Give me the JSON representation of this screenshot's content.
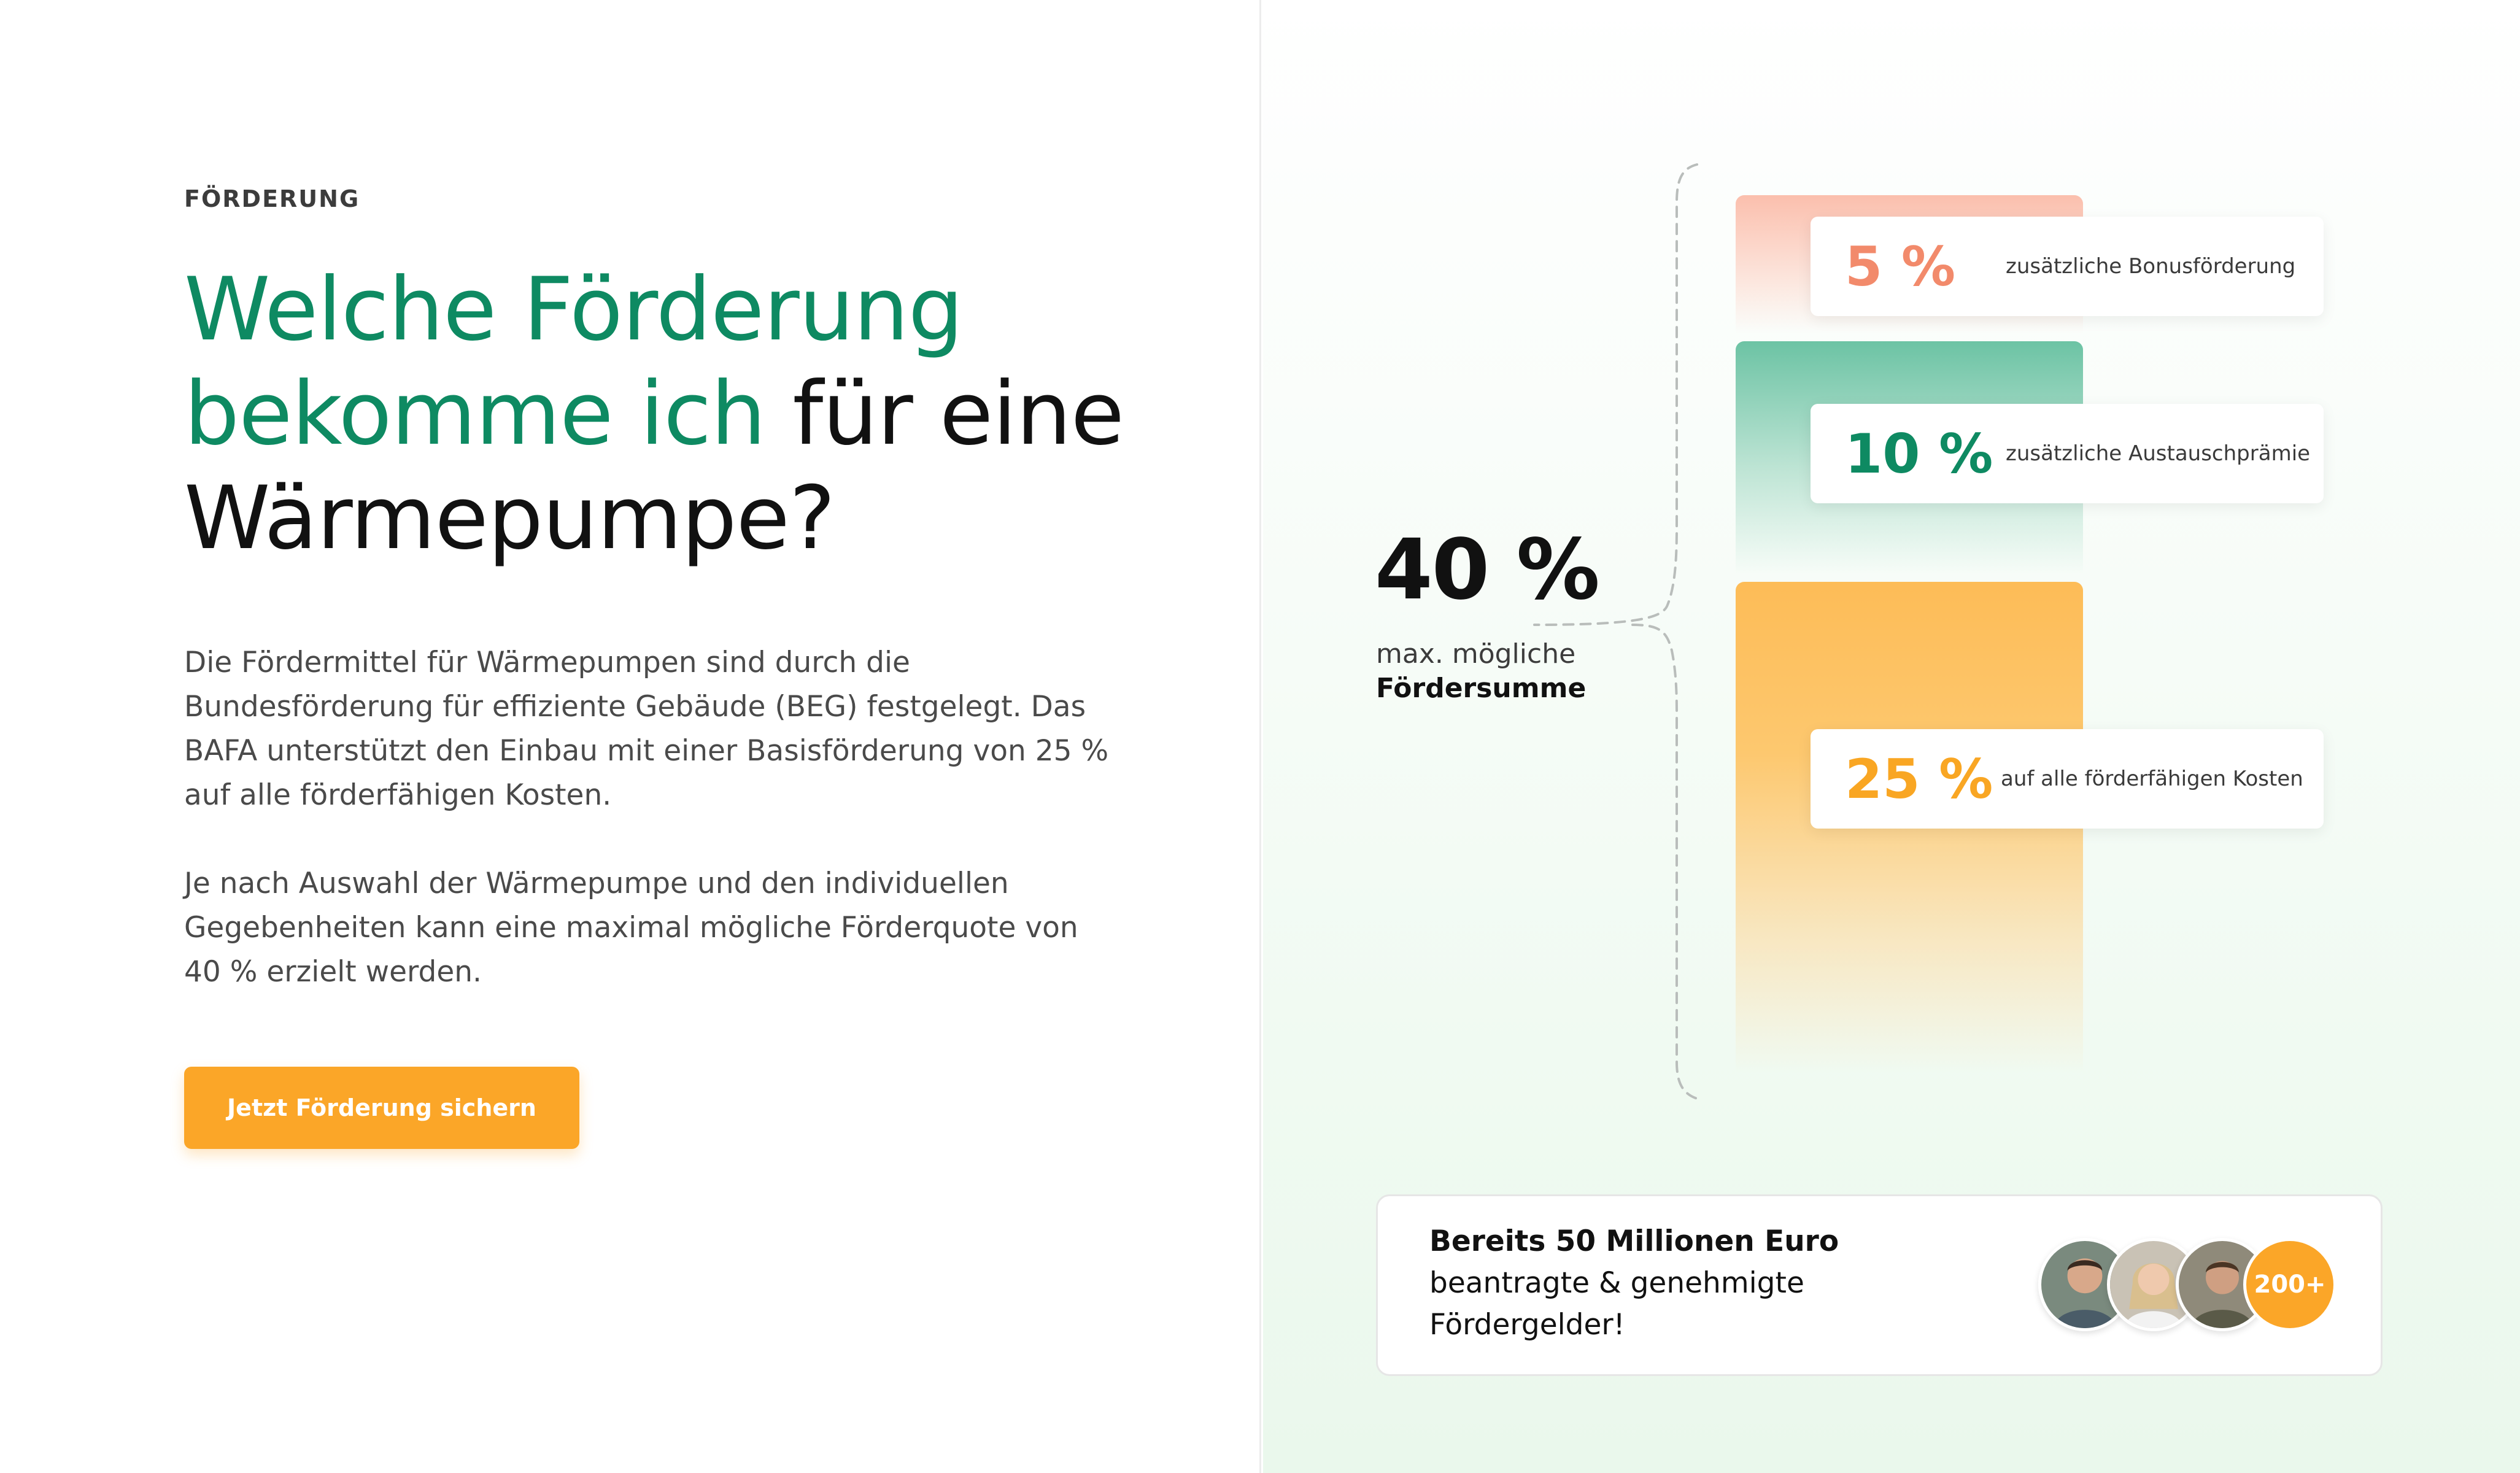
{
  "section": {
    "eyebrow": "FÖRDERUNG",
    "headline_accent_line1": "Welche Förderung",
    "headline_accent_line2": "bekomme ich",
    "headline_dark_line2": " für eine",
    "headline_dark_line3": "Wärmepumpe?",
    "paragraph1": "Die Fördermittel für Wärmepumpen sind durch die Bundesförderung für effiziente Gebäude (BEG) festgelegt. Das BAFA unterstützt den Einbau mit einer Basisförderung von 25 % auf alle förderfähigen Kosten.",
    "paragraph2": "Je nach Auswahl der Wärmepumpe und den individuellen Gegebenheiten kann eine maximal mögliche Förderquote von 40 % erzielt werden.",
    "cta_label": "Jetzt Förderung sichern"
  },
  "funding": {
    "total_value": "40 %",
    "total_label_line1": "max. mögliche",
    "total_label_line2": "Fördersumme",
    "tiers": [
      {
        "pct_label": "5 %",
        "description": "zusätzliche Bonusförderung",
        "value": 5,
        "color": "#f28a6b"
      },
      {
        "pct_label": "10 %",
        "description": "zusätzliche Austauschprämie",
        "value": 10,
        "color": "#0e8a62"
      },
      {
        "pct_label": "25 %",
        "description": "auf alle förderfähigen Kosten",
        "value": 25,
        "color": "#f9a623"
      }
    ]
  },
  "social_proof": {
    "line1": "Bereits 50 Millionen Euro",
    "line2": "beantragte & genehmigte",
    "line3": "Fördergelder!",
    "count_badge": "200+"
  },
  "colors": {
    "accent_green": "#0e8a62",
    "accent_orange": "#fba628",
    "accent_coral": "#f28a6b"
  }
}
